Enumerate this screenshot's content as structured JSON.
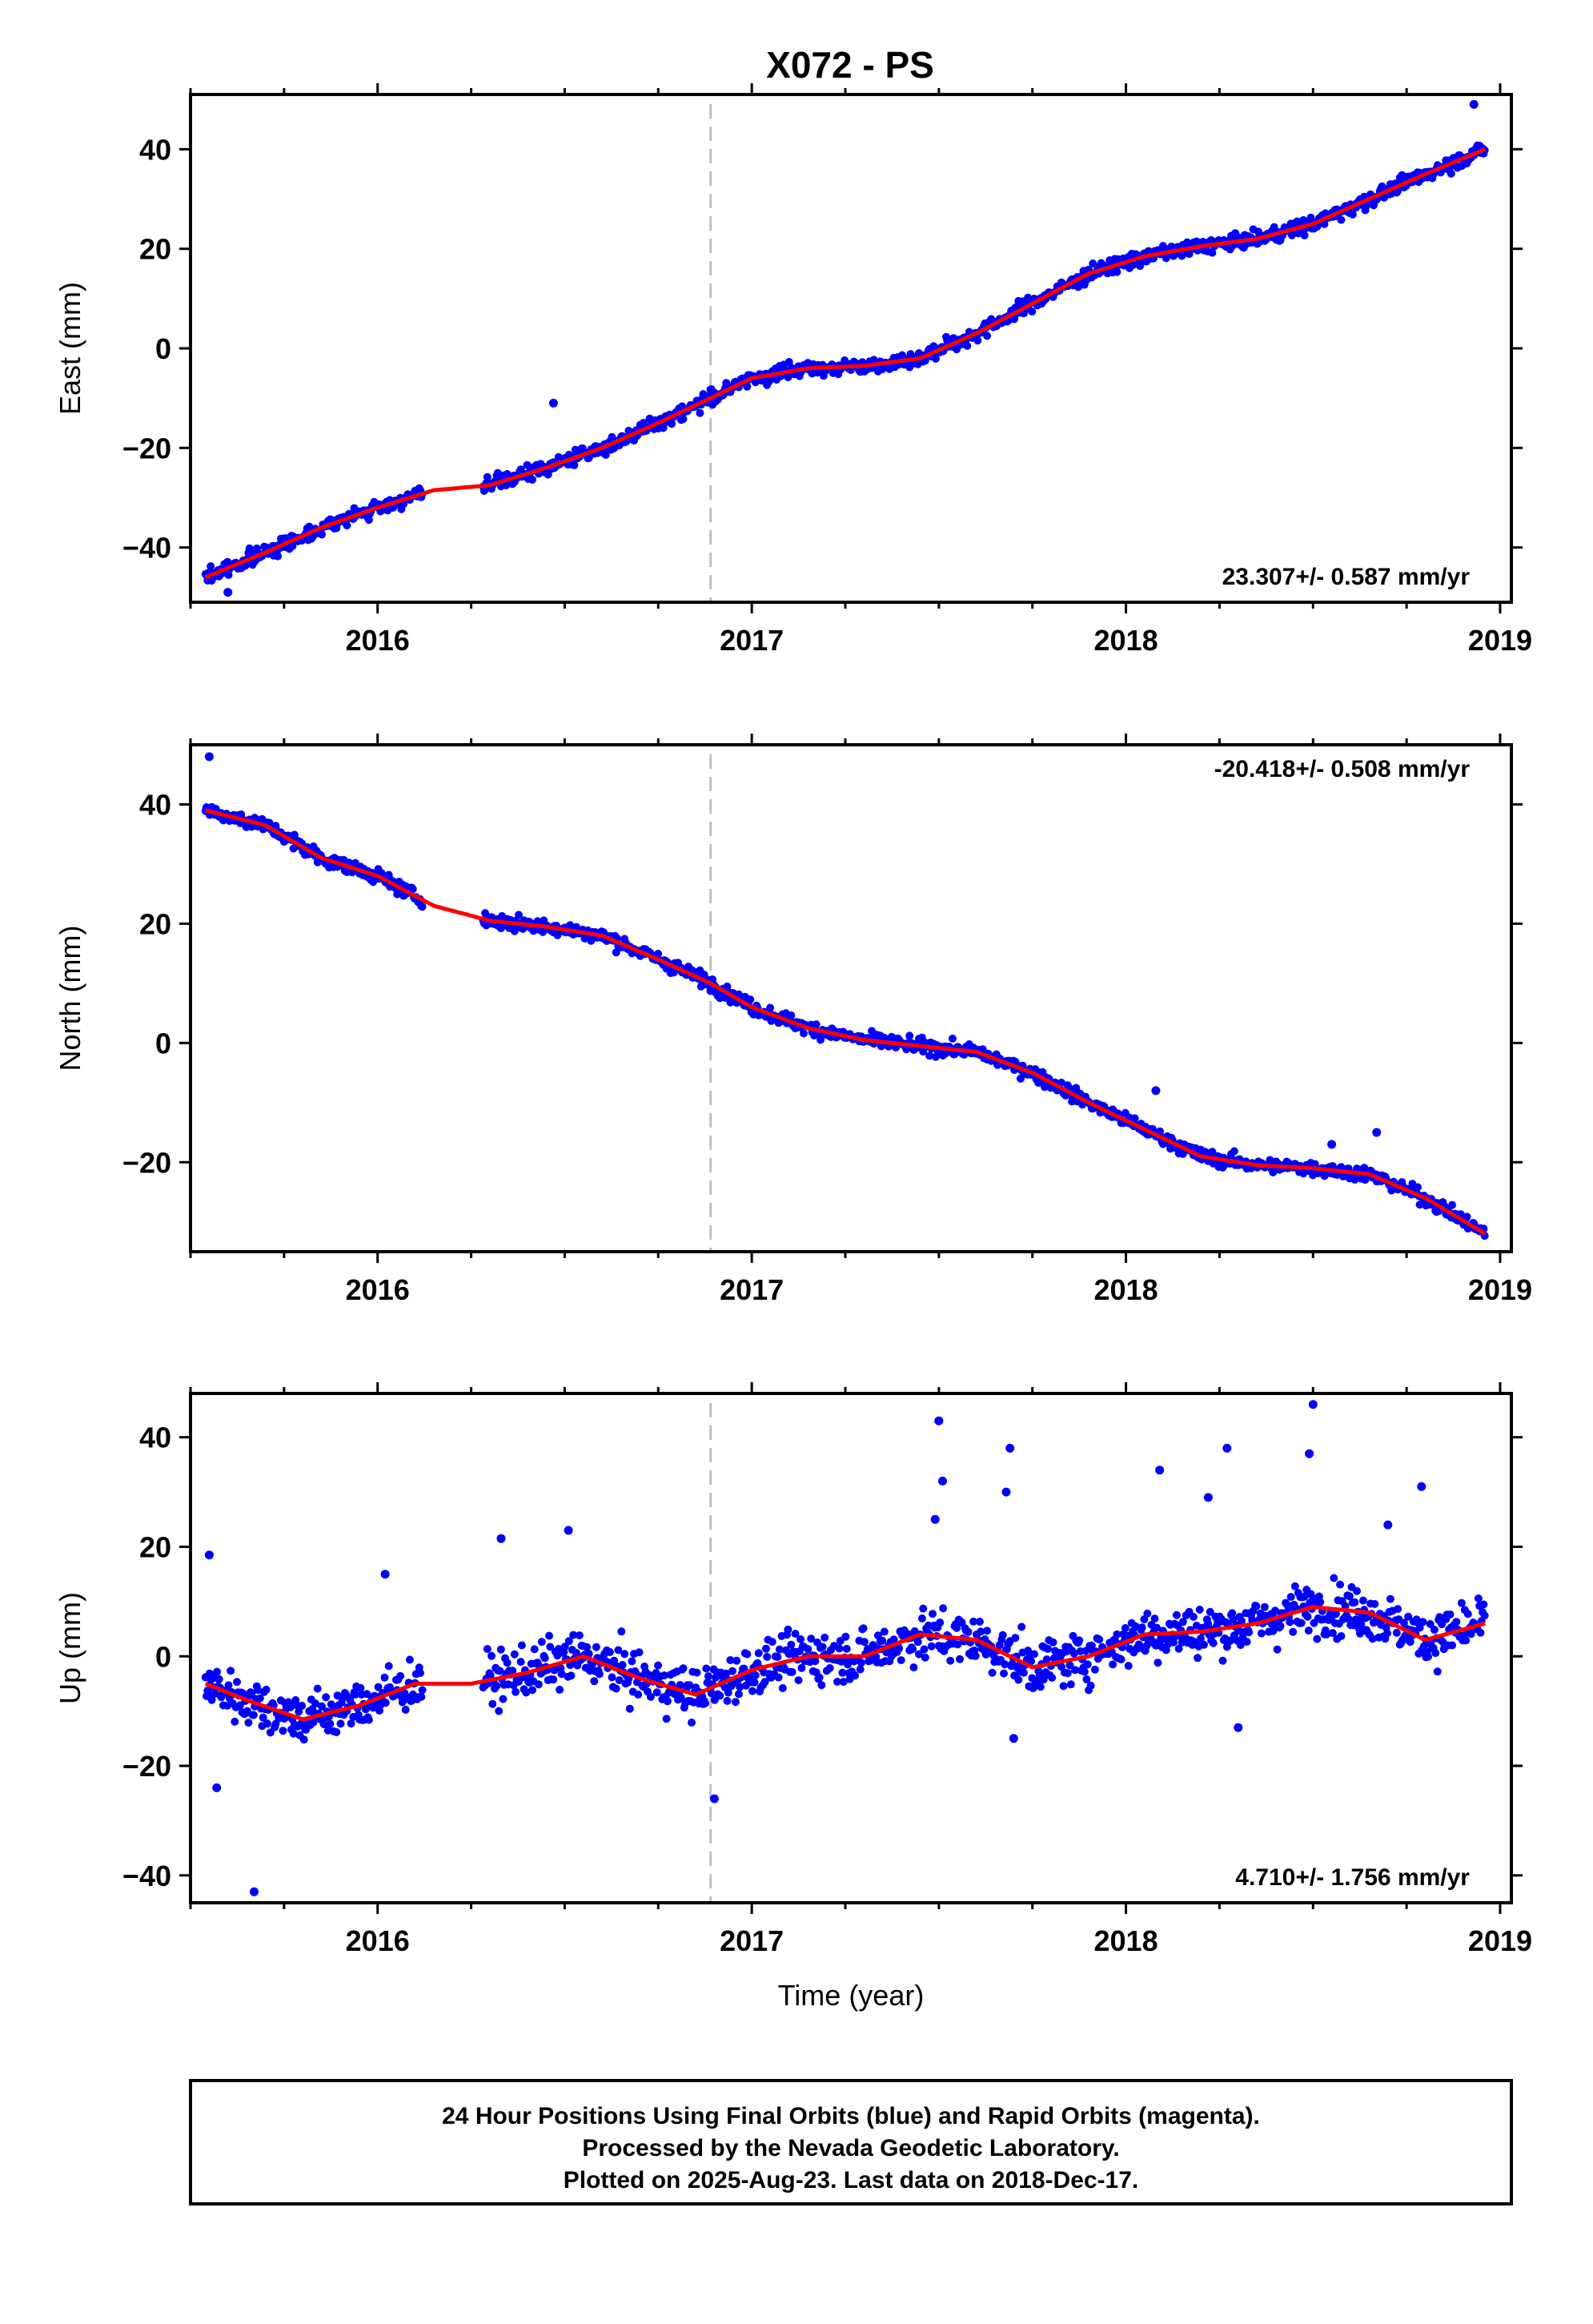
{
  "title": "X072 - PS",
  "colors": {
    "final_orbits": "#0000ff",
    "trend": "#ff0000",
    "event": "#bfbfbf",
    "frame": "#000000"
  },
  "footer": {
    "line1": "24 Hour Positions Using Final Orbits (blue) and Rapid Orbits (magenta).",
    "line2": "Processed by the Nevada Geodetic Laboratory.",
    "line3": "Plotted on 2025-Aug-23. Last data on 2018-Dec-17."
  },
  "chart_data": [
    {
      "type": "scatter",
      "component": "east",
      "ylabel": "East (mm)",
      "xlabel": "",
      "xlim": [
        2015.5,
        2019.03
      ],
      "ylim": [
        -51,
        51
      ],
      "xticks": [
        2016,
        2017,
        2018,
        2019
      ],
      "yticks": [
        -40,
        -20,
        0,
        20,
        40
      ],
      "rate_label": "23.307+/- 0.587 mm/yr",
      "rate_position": "bottom-right",
      "event_line_x": 2016.89,
      "data_start": 2015.54,
      "data_end": 2018.96,
      "data_gap": [
        2016.12,
        2016.28
      ],
      "scatter_sd": 1.8,
      "trend": {
        "x": [
          2015.54,
          2015.7,
          2015.85,
          2016.0,
          2016.15,
          2016.3,
          2016.45,
          2016.6,
          2016.75,
          2016.89,
          2017.0,
          2017.15,
          2017.3,
          2017.45,
          2017.6,
          2017.75,
          2017.9,
          2018.05,
          2018.2,
          2018.35,
          2018.5,
          2018.65,
          2018.8,
          2018.96
        ],
        "y": [
          -46,
          -41,
          -36,
          -32,
          -28.5,
          -27.5,
          -24,
          -20,
          -15,
          -10,
          -6,
          -4,
          -3.5,
          -2,
          3,
          9,
          15,
          18.5,
          20.5,
          22,
          25,
          30,
          35,
          40
        ]
      },
      "outliers": [
        {
          "x": 2016.47,
          "y": -11
        },
        {
          "x": 2018.93,
          "y": 49
        },
        {
          "x": 2015.6,
          "y": -49
        }
      ]
    },
    {
      "type": "scatter",
      "component": "north",
      "ylabel": "North (mm)",
      "xlabel": "",
      "xlim": [
        2015.5,
        2019.03
      ],
      "ylim": [
        -35,
        50
      ],
      "xticks": [
        2016,
        2017,
        2018,
        2019
      ],
      "yticks": [
        -20,
        0,
        20,
        40
      ],
      "rate_label": "-20.418+/- 0.508 mm/yr",
      "rate_position": "top-right",
      "event_line_x": 2016.89,
      "data_start": 2015.54,
      "data_end": 2018.96,
      "data_gap": [
        2016.12,
        2016.28
      ],
      "scatter_sd": 1.4,
      "trend": {
        "x": [
          2015.54,
          2015.7,
          2015.85,
          2016.0,
          2016.15,
          2016.3,
          2016.45,
          2016.6,
          2016.75,
          2016.89,
          2017.0,
          2017.15,
          2017.3,
          2017.45,
          2017.6,
          2017.75,
          2017.9,
          2018.05,
          2018.2,
          2018.35,
          2018.5,
          2018.65,
          2018.8,
          2018.96
        ],
        "y": [
          39,
          36.5,
          31,
          28,
          23,
          20.5,
          19.5,
          18,
          14,
          10,
          6,
          2.5,
          0.5,
          -0.5,
          -1.5,
          -5,
          -10,
          -14.5,
          -19,
          -20.5,
          -21,
          -22,
          -26,
          -32
        ]
      },
      "outliers": [
        {
          "x": 2015.55,
          "y": 48
        },
        {
          "x": 2018.08,
          "y": -8
        },
        {
          "x": 2018.67,
          "y": -15
        },
        {
          "x": 2018.55,
          "y": -17
        }
      ]
    },
    {
      "type": "scatter",
      "component": "up",
      "ylabel": "Up (mm)",
      "xlabel": "Time (year)",
      "xlim": [
        2015.5,
        2019.03
      ],
      "ylim": [
        -45,
        48
      ],
      "xticks": [
        2016,
        2017,
        2018,
        2019
      ],
      "yticks": [
        -40,
        -20,
        0,
        20,
        40
      ],
      "rate_label": "4.710+/- 1.756 mm/yr",
      "rate_position": "bottom-right",
      "event_line_x": 2016.89,
      "data_start": 2015.54,
      "data_end": 2018.96,
      "data_gap": [
        2016.12,
        2016.28
      ],
      "scatter_sd": 5.5,
      "trend": {
        "x": [
          2015.54,
          2015.65,
          2015.8,
          2015.95,
          2016.1,
          2016.25,
          2016.4,
          2016.55,
          2016.7,
          2016.85,
          2017.0,
          2017.15,
          2017.3,
          2017.45,
          2017.6,
          2017.75,
          2017.9,
          2018.05,
          2018.2,
          2018.35,
          2018.5,
          2018.65,
          2018.8,
          2018.96
        ],
        "y": [
          -5,
          -8,
          -11.5,
          -9,
          -5,
          -5,
          -3,
          0,
          -4,
          -7,
          -2.5,
          0,
          0,
          4,
          3,
          -2,
          0,
          4,
          4.5,
          6,
          9,
          8,
          3,
          6
        ]
      },
      "outliers": [
        {
          "x": 2015.55,
          "y": 18.5
        },
        {
          "x": 2015.57,
          "y": -24
        },
        {
          "x": 2015.67,
          "y": -43
        },
        {
          "x": 2016.02,
          "y": 15
        },
        {
          "x": 2016.33,
          "y": 21.5
        },
        {
          "x": 2016.51,
          "y": 23
        },
        {
          "x": 2016.9,
          "y": -26
        },
        {
          "x": 2017.5,
          "y": 43
        },
        {
          "x": 2017.51,
          "y": 32
        },
        {
          "x": 2017.49,
          "y": 25
        },
        {
          "x": 2017.69,
          "y": 38
        },
        {
          "x": 2017.68,
          "y": 30
        },
        {
          "x": 2018.09,
          "y": 34
        },
        {
          "x": 2018.27,
          "y": 38
        },
        {
          "x": 2018.22,
          "y": 29
        },
        {
          "x": 2018.5,
          "y": 46
        },
        {
          "x": 2018.49,
          "y": 37
        },
        {
          "x": 2018.79,
          "y": 31
        },
        {
          "x": 2018.7,
          "y": 24
        },
        {
          "x": 2018.3,
          "y": -13
        },
        {
          "x": 2017.7,
          "y": -15
        }
      ]
    }
  ]
}
